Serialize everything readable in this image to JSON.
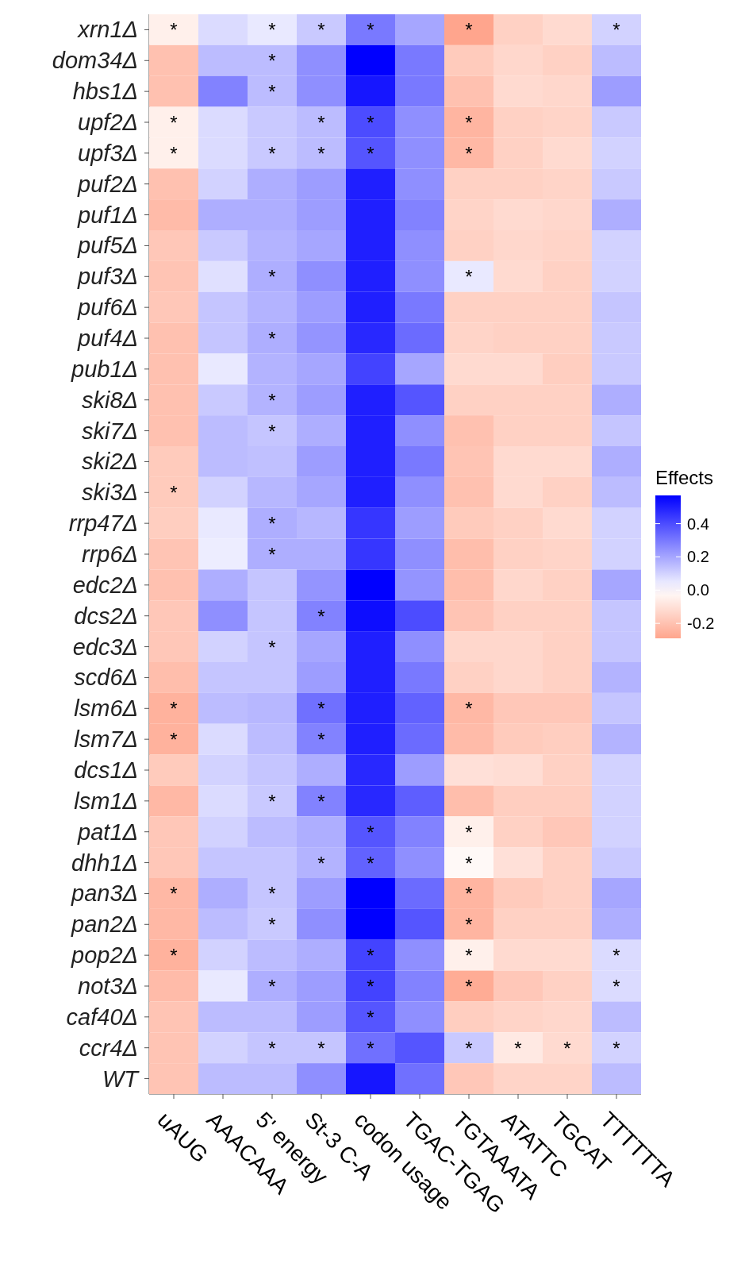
{
  "chart_data": {
    "type": "heatmap",
    "categories": [
      "uAUG",
      "AAACAAA",
      "5' energy",
      "St-3 C-A",
      "codon usage",
      "TGAC-TGAG",
      "TGTAAATA",
      "ATATTC",
      "TGCAT",
      "TTTTTTA"
    ],
    "y_categories": [
      "xrn1Δ",
      "dom34Δ",
      "hbs1Δ",
      "upf2Δ",
      "upf3Δ",
      "puf2Δ",
      "puf1Δ",
      "puf5Δ",
      "puf3Δ",
      "puf6Δ",
      "puf4Δ",
      "pub1Δ",
      "ski8Δ",
      "ski7Δ",
      "ski2Δ",
      "ski3Δ",
      "rrp47Δ",
      "rrp6Δ",
      "edc2Δ",
      "dcs2Δ",
      "edc3Δ",
      "scd6Δ",
      "lsm6Δ",
      "lsm7Δ",
      "dcs1Δ",
      "lsm1Δ",
      "pat1Δ",
      "dhh1Δ",
      "pan3Δ",
      "pan2Δ",
      "pop2Δ",
      "not3Δ",
      "caf40Δ",
      "ccr4Δ",
      "WT"
    ],
    "cells": [
      [
        -0.05,
        0.08,
        0.05,
        0.12,
        0.3,
        0.2,
        -0.29,
        -0.15,
        -0.12,
        0.1
      ],
      [
        -0.2,
        0.15,
        0.15,
        0.25,
        0.57,
        0.3,
        -0.17,
        -0.13,
        -0.15,
        0.15
      ],
      [
        -0.2,
        0.28,
        0.15,
        0.25,
        0.52,
        0.3,
        -0.2,
        -0.12,
        -0.13,
        0.22
      ],
      [
        -0.05,
        0.08,
        0.12,
        0.15,
        0.4,
        0.25,
        -0.24,
        -0.15,
        -0.14,
        0.12
      ],
      [
        -0.05,
        0.08,
        0.12,
        0.15,
        0.38,
        0.25,
        -0.23,
        -0.15,
        -0.12,
        0.1
      ],
      [
        -0.2,
        0.1,
        0.18,
        0.22,
        0.5,
        0.25,
        -0.15,
        -0.15,
        -0.14,
        0.12
      ],
      [
        -0.22,
        0.18,
        0.18,
        0.22,
        0.5,
        0.28,
        -0.14,
        -0.12,
        -0.13,
        0.18
      ],
      [
        -0.18,
        0.12,
        0.17,
        0.2,
        0.5,
        0.25,
        -0.15,
        -0.13,
        -0.14,
        0.1
      ],
      [
        -0.19,
        0.07,
        0.18,
        0.25,
        0.5,
        0.25,
        0.05,
        -0.12,
        -0.15,
        0.1
      ],
      [
        -0.18,
        0.13,
        0.17,
        0.22,
        0.5,
        0.3,
        -0.15,
        -0.15,
        -0.15,
        0.13
      ],
      [
        -0.2,
        0.13,
        0.18,
        0.24,
        0.48,
        0.33,
        -0.14,
        -0.15,
        -0.15,
        0.12
      ],
      [
        -0.2,
        0.05,
        0.17,
        0.2,
        0.42,
        0.2,
        -0.12,
        -0.12,
        -0.16,
        0.12
      ],
      [
        -0.2,
        0.12,
        0.17,
        0.22,
        0.5,
        0.38,
        -0.15,
        -0.15,
        -0.15,
        0.18
      ],
      [
        -0.2,
        0.15,
        0.13,
        0.18,
        0.5,
        0.25,
        -0.2,
        -0.15,
        -0.15,
        0.13
      ],
      [
        -0.17,
        0.15,
        0.14,
        0.22,
        0.5,
        0.3,
        -0.19,
        -0.12,
        -0.12,
        0.18
      ],
      [
        -0.17,
        0.1,
        0.16,
        0.2,
        0.5,
        0.25,
        -0.2,
        -0.12,
        -0.15,
        0.15
      ],
      [
        -0.16,
        0.05,
        0.18,
        0.16,
        0.45,
        0.22,
        -0.17,
        -0.15,
        -0.12,
        0.1
      ],
      [
        -0.19,
        0.04,
        0.18,
        0.18,
        0.45,
        0.25,
        -0.21,
        -0.15,
        -0.14,
        0.1
      ],
      [
        -0.2,
        0.18,
        0.13,
        0.24,
        0.57,
        0.24,
        -0.21,
        -0.13,
        -0.15,
        0.2
      ],
      [
        -0.18,
        0.25,
        0.13,
        0.28,
        0.54,
        0.4,
        -0.19,
        -0.15,
        -0.15,
        0.13
      ],
      [
        -0.18,
        0.1,
        0.13,
        0.2,
        0.5,
        0.25,
        -0.13,
        -0.13,
        -0.15,
        0.13
      ],
      [
        -0.21,
        0.13,
        0.13,
        0.22,
        0.5,
        0.3,
        -0.15,
        -0.13,
        -0.15,
        0.17
      ],
      [
        -0.25,
        0.15,
        0.16,
        0.32,
        0.5,
        0.35,
        -0.23,
        -0.18,
        -0.18,
        0.13
      ],
      [
        -0.25,
        0.08,
        0.15,
        0.28,
        0.5,
        0.33,
        -0.22,
        -0.17,
        -0.16,
        0.17
      ],
      [
        -0.17,
        0.1,
        0.13,
        0.18,
        0.48,
        0.22,
        -0.1,
        -0.11,
        -0.15,
        0.1
      ],
      [
        -0.23,
        0.08,
        0.12,
        0.28,
        0.48,
        0.36,
        -0.21,
        -0.16,
        -0.16,
        0.1
      ],
      [
        -0.18,
        0.1,
        0.15,
        0.18,
        0.38,
        0.28,
        -0.05,
        -0.15,
        -0.18,
        0.1
      ],
      [
        -0.18,
        0.13,
        0.13,
        0.17,
        0.35,
        0.25,
        -0.02,
        -0.1,
        -0.15,
        0.12
      ],
      [
        -0.23,
        0.18,
        0.13,
        0.22,
        0.57,
        0.33,
        -0.24,
        -0.17,
        -0.15,
        0.2
      ],
      [
        -0.23,
        0.15,
        0.12,
        0.25,
        0.57,
        0.38,
        -0.24,
        -0.15,
        -0.15,
        0.18
      ],
      [
        -0.25,
        0.1,
        0.15,
        0.18,
        0.42,
        0.25,
        -0.05,
        -0.12,
        -0.12,
        0.08
      ],
      [
        -0.22,
        0.05,
        0.18,
        0.22,
        0.42,
        0.28,
        -0.27,
        -0.18,
        -0.15,
        0.08
      ],
      [
        -0.19,
        0.15,
        0.15,
        0.22,
        0.38,
        0.25,
        -0.16,
        -0.14,
        -0.13,
        0.15
      ],
      [
        -0.19,
        0.1,
        0.13,
        0.13,
        0.32,
        0.38,
        0.12,
        -0.07,
        -0.12,
        0.1
      ],
      [
        -0.19,
        0.15,
        0.15,
        0.25,
        0.52,
        0.32,
        -0.18,
        -0.14,
        -0.14,
        0.15
      ]
    ],
    "cell_labels": [
      [
        "*",
        null,
        "*",
        "*",
        "*",
        null,
        "*",
        null,
        null,
        "*"
      ],
      [
        null,
        null,
        "*",
        null,
        null,
        null,
        null,
        null,
        null,
        null
      ],
      [
        null,
        null,
        "*",
        null,
        null,
        null,
        null,
        null,
        null,
        null
      ],
      [
        "*",
        null,
        null,
        "*",
        "*",
        null,
        "*",
        null,
        null,
        null
      ],
      [
        "*",
        null,
        "*",
        "*",
        "*",
        null,
        "*",
        null,
        null,
        null
      ],
      [
        null,
        null,
        null,
        null,
        null,
        null,
        null,
        null,
        null,
        null
      ],
      [
        null,
        null,
        null,
        null,
        null,
        null,
        null,
        null,
        null,
        null
      ],
      [
        null,
        null,
        null,
        null,
        null,
        null,
        null,
        null,
        null,
        null
      ],
      [
        null,
        null,
        "*",
        null,
        null,
        null,
        "*",
        null,
        null,
        null
      ],
      [
        null,
        null,
        null,
        null,
        null,
        null,
        null,
        null,
        null,
        null
      ],
      [
        null,
        null,
        "*",
        null,
        null,
        null,
        null,
        null,
        null,
        null
      ],
      [
        null,
        null,
        null,
        null,
        null,
        null,
        null,
        null,
        null,
        null
      ],
      [
        null,
        null,
        "*",
        null,
        null,
        null,
        null,
        null,
        null,
        null
      ],
      [
        null,
        null,
        "*",
        null,
        null,
        null,
        null,
        null,
        null,
        null
      ],
      [
        null,
        null,
        null,
        null,
        null,
        null,
        null,
        null,
        null,
        null
      ],
      [
        "*",
        null,
        null,
        null,
        null,
        null,
        null,
        null,
        null,
        null
      ],
      [
        null,
        null,
        "*",
        null,
        null,
        null,
        null,
        null,
        null,
        null
      ],
      [
        null,
        null,
        "*",
        null,
        null,
        null,
        null,
        null,
        null,
        null
      ],
      [
        null,
        null,
        null,
        null,
        null,
        null,
        null,
        null,
        null,
        null
      ],
      [
        null,
        null,
        null,
        "*",
        null,
        null,
        null,
        null,
        null,
        null
      ],
      [
        null,
        null,
        "*",
        null,
        null,
        null,
        null,
        null,
        null,
        null
      ],
      [
        null,
        null,
        null,
        null,
        null,
        null,
        null,
        null,
        null,
        null
      ],
      [
        "*",
        null,
        null,
        "*",
        null,
        null,
        "*",
        null,
        null,
        null
      ],
      [
        "*",
        null,
        null,
        "*",
        null,
        null,
        null,
        null,
        null,
        null
      ],
      [
        null,
        null,
        null,
        null,
        null,
        null,
        null,
        null,
        null,
        null
      ],
      [
        null,
        null,
        "*",
        "*",
        null,
        null,
        null,
        null,
        null,
        null
      ],
      [
        null,
        null,
        null,
        null,
        "*",
        null,
        "*",
        null,
        null,
        null
      ],
      [
        null,
        null,
        null,
        "*",
        "*",
        null,
        "*",
        null,
        null,
        null
      ],
      [
        "*",
        null,
        "*",
        null,
        null,
        null,
        "*",
        null,
        null,
        null
      ],
      [
        null,
        null,
        "*",
        null,
        null,
        null,
        "*",
        null,
        null,
        null
      ],
      [
        "*",
        null,
        null,
        null,
        "*",
        null,
        "*",
        null,
        null,
        "*"
      ],
      [
        null,
        null,
        "*",
        null,
        "*",
        null,
        "*",
        null,
        null,
        "*"
      ],
      [
        null,
        null,
        null,
        null,
        "*",
        null,
        null,
        null,
        null,
        null
      ],
      [
        null,
        null,
        "*",
        "*",
        "*",
        null,
        "*",
        "*",
        "*",
        "*"
      ],
      [
        null,
        null,
        null,
        null,
        null,
        null,
        null,
        null,
        null,
        null
      ]
    ],
    "clabel": "Effects",
    "clim": [
      -0.29,
      0.57
    ],
    "cticks": [
      {
        "value": -0.2,
        "label": "-0.2"
      },
      {
        "value": 0,
        "label": "0.0"
      },
      {
        "value": 0.2,
        "label": "0.2"
      },
      {
        "value": 0.4,
        "label": "0.4"
      }
    ]
  }
}
